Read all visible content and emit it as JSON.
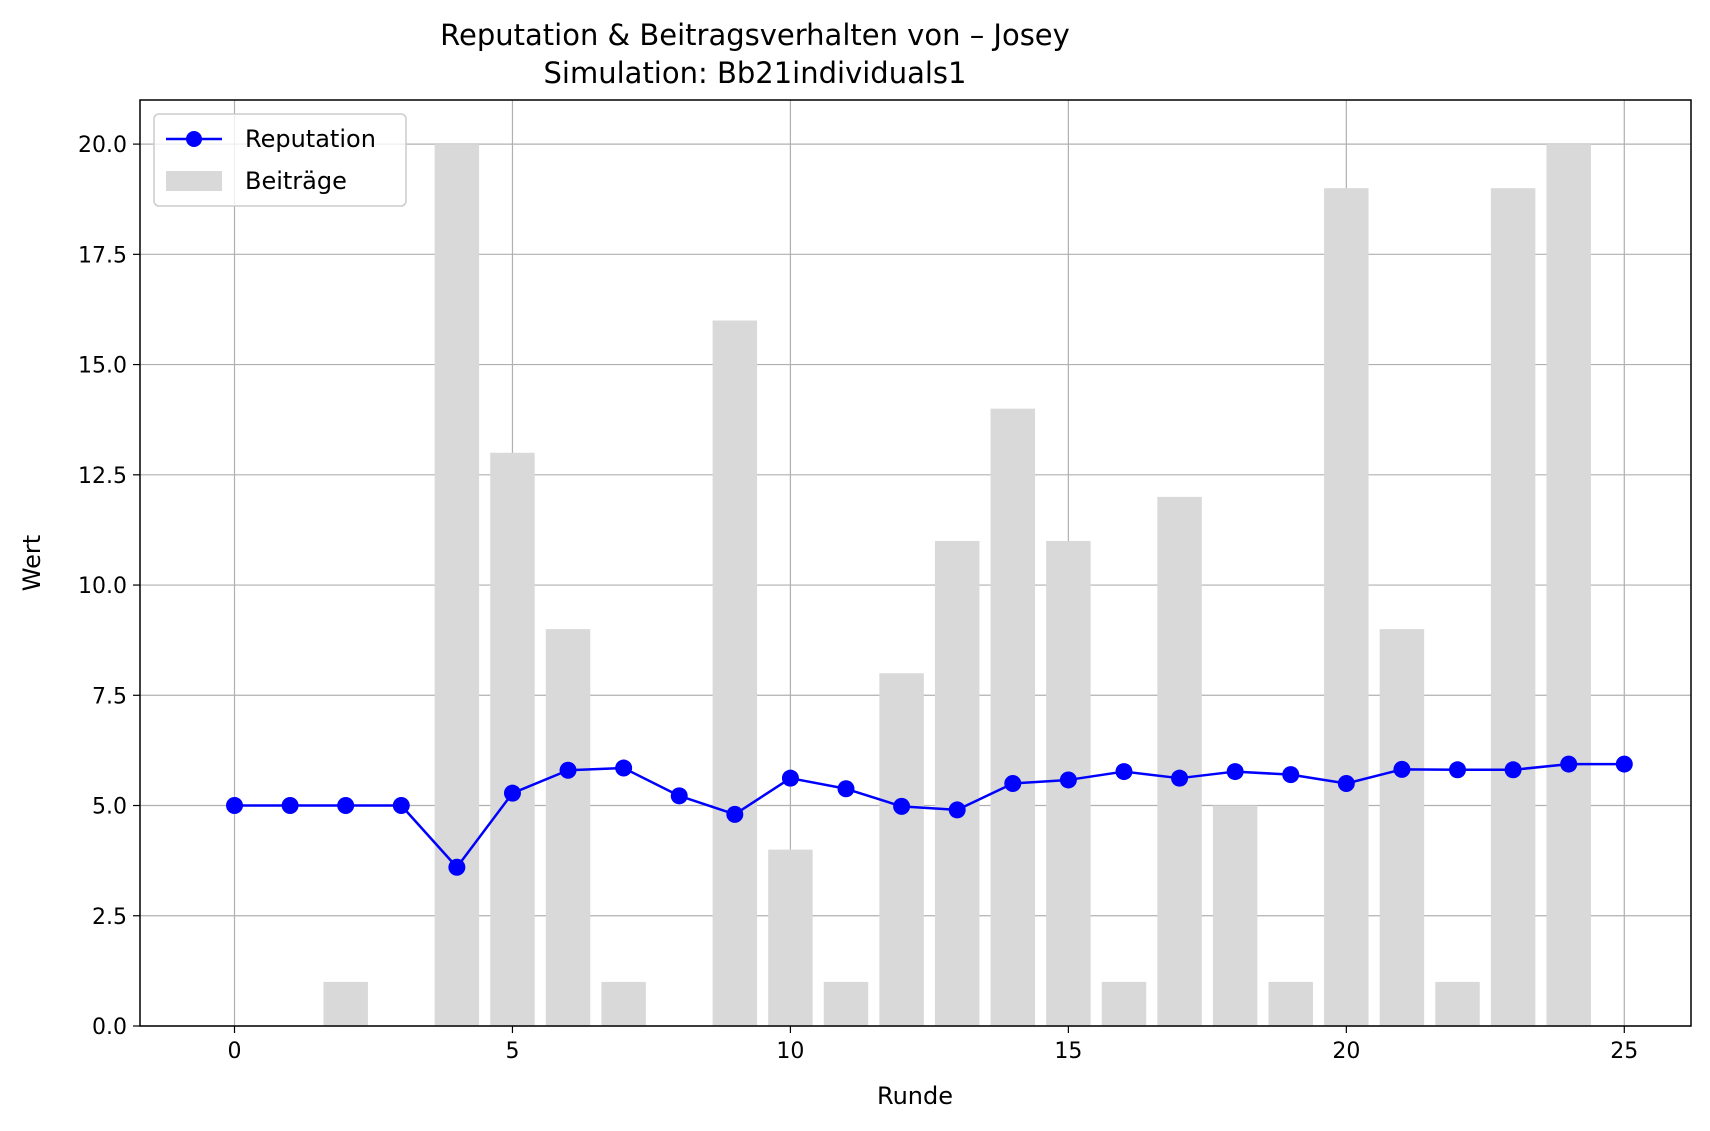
{
  "chart_data": {
    "type": "bar+line",
    "title": "Reputation & Beitragsverhalten von – Josey",
    "subtitle": "Simulation: Bb21individuals1",
    "xlabel": "Runde",
    "ylabel": "Wert",
    "xlim": [
      -1.7,
      26.2
    ],
    "ylim": [
      0,
      21
    ],
    "xticks": [
      "0",
      "5",
      "10",
      "15",
      "20",
      "25"
    ],
    "yticks": [
      "0.0",
      "2.5",
      "5.0",
      "7.5",
      "10.0",
      "12.5",
      "15.0",
      "17.5",
      "20.0"
    ],
    "grid": true,
    "legend_position": "top-left",
    "x": [
      0,
      1,
      2,
      3,
      4,
      5,
      6,
      7,
      8,
      9,
      10,
      11,
      12,
      13,
      14,
      15,
      16,
      17,
      18,
      19,
      20,
      21,
      22,
      23,
      24,
      25
    ],
    "series": [
      {
        "name": "Reputation",
        "kind": "line",
        "color": "#0000ff",
        "marker": "circle",
        "values": [
          5.0,
          5.0,
          5.0,
          5.0,
          3.6,
          5.28,
          5.8,
          5.85,
          5.22,
          4.8,
          5.62,
          5.38,
          4.98,
          4.9,
          5.5,
          5.58,
          5.77,
          5.62,
          5.77,
          5.7,
          5.5,
          5.82,
          5.81,
          5.81,
          5.94,
          5.94
        ]
      },
      {
        "name": "Beiträge",
        "kind": "bar",
        "color": "#d9d9d9",
        "values": [
          0,
          0,
          1,
          0,
          20,
          13,
          9,
          1,
          0,
          16,
          4,
          1,
          8,
          11,
          14,
          11,
          1,
          12,
          5,
          1,
          19,
          9,
          1,
          19,
          20,
          null
        ]
      }
    ]
  }
}
